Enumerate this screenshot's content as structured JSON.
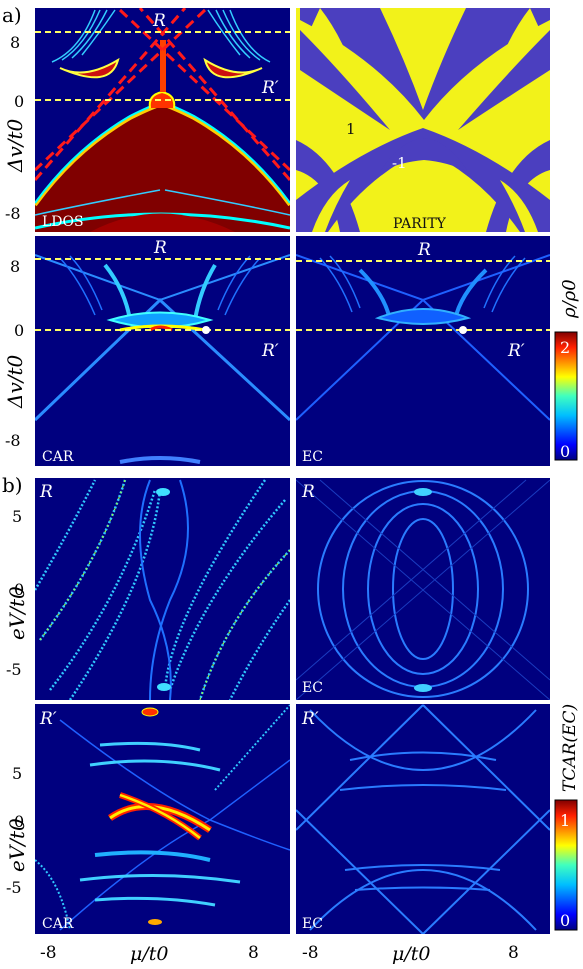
{
  "figure": {
    "panel_a_label": "a)",
    "panel_b_label": "b)",
    "a_ylabel": "Δv/t0",
    "b_ylabel": "eV/t0",
    "xlabel": "μ/t0",
    "colorbar_a_label": "ρ/ρ0",
    "colorbar_b_label": "TCAR(EC)",
    "line_label_R": "R",
    "line_label_Rp": "R′"
  },
  "chart_data": [
    {
      "type": "heatmap",
      "panel": "a",
      "tag": "LDOS",
      "x": "μ/t0",
      "y": "Δv/t0",
      "yticks": [
        "8",
        "0",
        "-8"
      ],
      "features": {
        "R_cut": 8,
        "Rprime_cut": 0
      }
    },
    {
      "type": "heatmap",
      "panel": "a",
      "tag": "PARITY",
      "region_labels": [
        "1",
        "-1"
      ],
      "colors": {
        "plus": "#f2f21a",
        "minus": "#4b3fbf"
      }
    },
    {
      "type": "heatmap",
      "panel": "a",
      "tag": "CAR",
      "yticks": [
        "8",
        "0",
        "-8"
      ]
    },
    {
      "type": "heatmap",
      "panel": "a",
      "tag": "EC"
    },
    {
      "type": "heatmap",
      "panel": "b",
      "tag": "R",
      "caption": "",
      "yticks": [
        "5",
        "0",
        "-5"
      ]
    },
    {
      "type": "heatmap",
      "panel": "b",
      "tag": "R",
      "caption": "EC"
    },
    {
      "type": "heatmap",
      "panel": "b",
      "tag": "R′",
      "caption": "CAR",
      "yticks": [
        "5",
        "0",
        "-5"
      ],
      "xticks": [
        "-8",
        "8"
      ]
    },
    {
      "type": "heatmap",
      "panel": "b",
      "tag": "R′",
      "caption": "EC",
      "xticks": [
        "-8",
        "8"
      ]
    }
  ],
  "colorbar_a": {
    "max": "2",
    "min": "0"
  },
  "colorbar_b": {
    "max": "1",
    "min": "0"
  }
}
